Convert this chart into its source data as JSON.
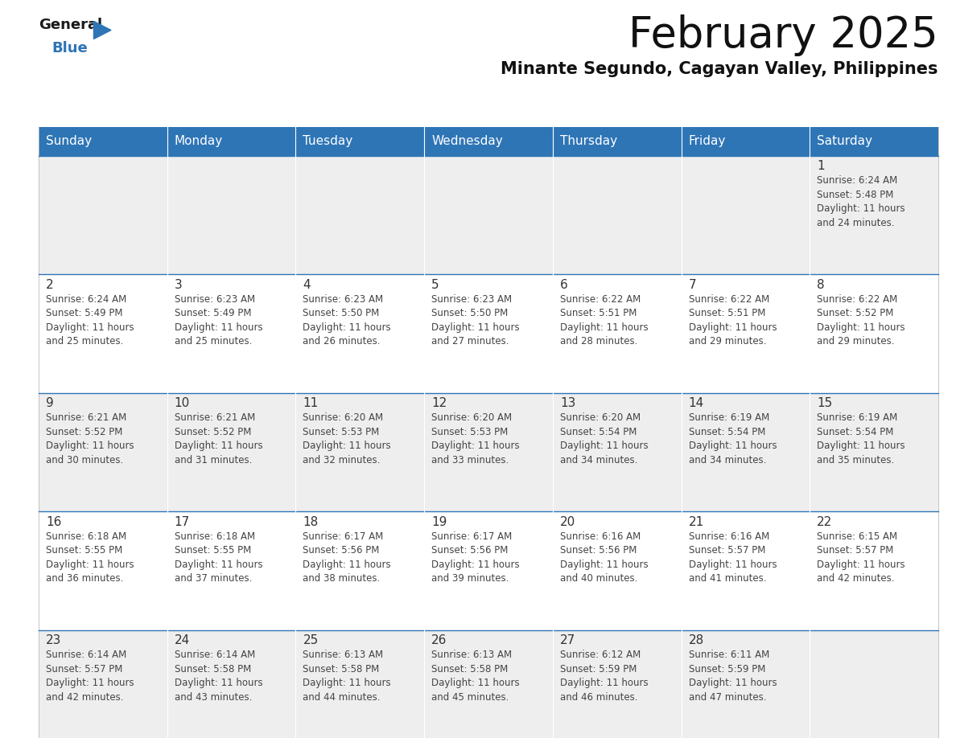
{
  "title": "February 2025",
  "subtitle": "Minante Segundo, Cagayan Valley, Philippines",
  "header_bg_color": "#2e75b6",
  "header_text_color": "#ffffff",
  "days_of_week": [
    "Sunday",
    "Monday",
    "Tuesday",
    "Wednesday",
    "Thursday",
    "Friday",
    "Saturday"
  ],
  "row_bg_even": "#eeeeee",
  "row_bg_odd": "#ffffff",
  "divider_color": "#2e75b6",
  "cell_text_color": "#444444",
  "day_num_color": "#333333",
  "calendar_data": [
    [
      null,
      null,
      null,
      null,
      null,
      null,
      {
        "day": 1,
        "sunrise": "6:24 AM",
        "sunset": "5:48 PM",
        "daylight": "11 hours\nand 24 minutes."
      }
    ],
    [
      {
        "day": 2,
        "sunrise": "6:24 AM",
        "sunset": "5:49 PM",
        "daylight": "11 hours\nand 25 minutes."
      },
      {
        "day": 3,
        "sunrise": "6:23 AM",
        "sunset": "5:49 PM",
        "daylight": "11 hours\nand 25 minutes."
      },
      {
        "day": 4,
        "sunrise": "6:23 AM",
        "sunset": "5:50 PM",
        "daylight": "11 hours\nand 26 minutes."
      },
      {
        "day": 5,
        "sunrise": "6:23 AM",
        "sunset": "5:50 PM",
        "daylight": "11 hours\nand 27 minutes."
      },
      {
        "day": 6,
        "sunrise": "6:22 AM",
        "sunset": "5:51 PM",
        "daylight": "11 hours\nand 28 minutes."
      },
      {
        "day": 7,
        "sunrise": "6:22 AM",
        "sunset": "5:51 PM",
        "daylight": "11 hours\nand 29 minutes."
      },
      {
        "day": 8,
        "sunrise": "6:22 AM",
        "sunset": "5:52 PM",
        "daylight": "11 hours\nand 29 minutes."
      }
    ],
    [
      {
        "day": 9,
        "sunrise": "6:21 AM",
        "sunset": "5:52 PM",
        "daylight": "11 hours\nand 30 minutes."
      },
      {
        "day": 10,
        "sunrise": "6:21 AM",
        "sunset": "5:52 PM",
        "daylight": "11 hours\nand 31 minutes."
      },
      {
        "day": 11,
        "sunrise": "6:20 AM",
        "sunset": "5:53 PM",
        "daylight": "11 hours\nand 32 minutes."
      },
      {
        "day": 12,
        "sunrise": "6:20 AM",
        "sunset": "5:53 PM",
        "daylight": "11 hours\nand 33 minutes."
      },
      {
        "day": 13,
        "sunrise": "6:20 AM",
        "sunset": "5:54 PM",
        "daylight": "11 hours\nand 34 minutes."
      },
      {
        "day": 14,
        "sunrise": "6:19 AM",
        "sunset": "5:54 PM",
        "daylight": "11 hours\nand 34 minutes."
      },
      {
        "day": 15,
        "sunrise": "6:19 AM",
        "sunset": "5:54 PM",
        "daylight": "11 hours\nand 35 minutes."
      }
    ],
    [
      {
        "day": 16,
        "sunrise": "6:18 AM",
        "sunset": "5:55 PM",
        "daylight": "11 hours\nand 36 minutes."
      },
      {
        "day": 17,
        "sunrise": "6:18 AM",
        "sunset": "5:55 PM",
        "daylight": "11 hours\nand 37 minutes."
      },
      {
        "day": 18,
        "sunrise": "6:17 AM",
        "sunset": "5:56 PM",
        "daylight": "11 hours\nand 38 minutes."
      },
      {
        "day": 19,
        "sunrise": "6:17 AM",
        "sunset": "5:56 PM",
        "daylight": "11 hours\nand 39 minutes."
      },
      {
        "day": 20,
        "sunrise": "6:16 AM",
        "sunset": "5:56 PM",
        "daylight": "11 hours\nand 40 minutes."
      },
      {
        "day": 21,
        "sunrise": "6:16 AM",
        "sunset": "5:57 PM",
        "daylight": "11 hours\nand 41 minutes."
      },
      {
        "day": 22,
        "sunrise": "6:15 AM",
        "sunset": "5:57 PM",
        "daylight": "11 hours\nand 42 minutes."
      }
    ],
    [
      {
        "day": 23,
        "sunrise": "6:14 AM",
        "sunset": "5:57 PM",
        "daylight": "11 hours\nand 42 minutes."
      },
      {
        "day": 24,
        "sunrise": "6:14 AM",
        "sunset": "5:58 PM",
        "daylight": "11 hours\nand 43 minutes."
      },
      {
        "day": 25,
        "sunrise": "6:13 AM",
        "sunset": "5:58 PM",
        "daylight": "11 hours\nand 44 minutes."
      },
      {
        "day": 26,
        "sunrise": "6:13 AM",
        "sunset": "5:58 PM",
        "daylight": "11 hours\nand 45 minutes."
      },
      {
        "day": 27,
        "sunrise": "6:12 AM",
        "sunset": "5:59 PM",
        "daylight": "11 hours\nand 46 minutes."
      },
      {
        "day": 28,
        "sunrise": "6:11 AM",
        "sunset": "5:59 PM",
        "daylight": "11 hours\nand 47 minutes."
      },
      null
    ]
  ],
  "logo_text_general": "General",
  "logo_text_blue": "Blue",
  "logo_arrow_color": "#2e75b6",
  "title_fontsize": 38,
  "subtitle_fontsize": 15,
  "header_fontsize": 11,
  "day_num_fontsize": 11,
  "cell_fontsize": 8.5
}
